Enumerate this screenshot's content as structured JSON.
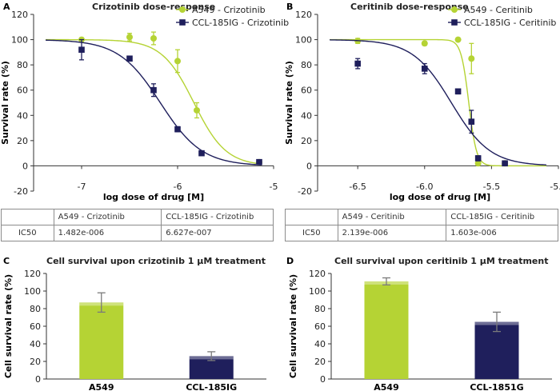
{
  "colors": {
    "green": "#b5d334",
    "navy": "#1f1f5c",
    "axis": "#333333"
  },
  "chart_data": [
    {
      "panel": "A",
      "type": "scatter",
      "title": "Crizotinib dose-response",
      "xlabel": "log dose of drug [M]",
      "ylabel": "Survival rate (%)",
      "xlim": [
        -7.5,
        -5
      ],
      "ylim": [
        -20,
        120
      ],
      "xticks": [
        "-7",
        "-6",
        "-5"
      ],
      "yticks": [
        "-20",
        "0",
        "20",
        "40",
        "60",
        "80",
        "100",
        "120"
      ],
      "series": [
        {
          "name": "A549 - Crizotinib",
          "marker": "circle",
          "ic50_log": -5.83,
          "hill": 2.6,
          "x": [
            -7.0,
            -6.5,
            -6.25,
            -6.0,
            -5.8,
            -5.15
          ],
          "y": [
            100,
            102,
            101,
            83,
            44,
            3
          ],
          "err": [
            1.5,
            3,
            5,
            9,
            6,
            1
          ]
        },
        {
          "name": "CCL-185IG - Crizotinib",
          "marker": "square",
          "ic50_log": -6.18,
          "hill": 2.0,
          "x": [
            -7.0,
            -6.5,
            -6.25,
            -6.0,
            -5.75,
            -5.15
          ],
          "y": [
            92,
            85,
            60,
            29,
            10,
            3
          ],
          "err": [
            8,
            1.5,
            5,
            2,
            1.5,
            1
          ]
        }
      ],
      "ic50_table": {
        "header": [
          "",
          "A549 - Crizotinib",
          "CCL-185IG - Crizotinib"
        ],
        "row": [
          "IC50",
          "1.482e-006",
          "6.627e-007"
        ]
      }
    },
    {
      "panel": "B",
      "type": "scatter",
      "title": "Ceritinib dose-response",
      "xlabel": "log dose of drug [M]",
      "ylabel": "Survival rate (%)",
      "xlim": [
        -6.8,
        -5.0
      ],
      "ylim": [
        -20,
        120
      ],
      "xticks": [
        "-6.5",
        "-6.0",
        "-5.5",
        "-5.0"
      ],
      "yticks": [
        "-20",
        "0",
        "20",
        "40",
        "60",
        "80",
        "100",
        "120"
      ],
      "series": [
        {
          "name": "A549 - Ceritinib",
          "marker": "circle",
          "ic50_log": -5.67,
          "hill": 15,
          "x": [
            -6.5,
            -6.0,
            -5.75,
            -5.65,
            -5.6,
            -5.4
          ],
          "y": [
            99,
            97,
            100,
            85,
            2,
            2
          ],
          "err": [
            2,
            1.5,
            1,
            12,
            1,
            1
          ]
        },
        {
          "name": "CCL-185IG - Ceritinib",
          "marker": "square",
          "ic50_log": -5.8,
          "hill": 3.0,
          "x": [
            -6.5,
            -6.0,
            -5.75,
            -5.65,
            -5.6,
            -5.4
          ],
          "y": [
            81,
            77,
            59,
            35,
            6,
            2
          ],
          "err": [
            4,
            4,
            2,
            9,
            2,
            1
          ]
        }
      ],
      "ic50_table": {
        "header": [
          "",
          "A549 - Ceritinib",
          "CCL-185IG - Ceritinib"
        ],
        "row": [
          "IC50",
          "2.139e-006",
          "1.603e-006"
        ]
      }
    },
    {
      "panel": "C",
      "type": "bar",
      "title": "Cell survival upon crizotinib 1 μM treatment",
      "xlabel": "",
      "ylabel": "Cell survival rate (%)",
      "categories": [
        "A549",
        "CCL-185IG"
      ],
      "values": [
        87,
        26
      ],
      "errors": [
        11,
        5
      ],
      "ylim": [
        0,
        120
      ],
      "yticks": [
        "0",
        "20",
        "40",
        "60",
        "80",
        "100",
        "120"
      ]
    },
    {
      "panel": "D",
      "type": "bar",
      "title": "Cell survival upon ceritinib 1 μM treatment",
      "xlabel": "",
      "ylabel": "Cell survival rate (%)",
      "categories": [
        "A549",
        "CCL-1851G"
      ],
      "values": [
        111,
        65
      ],
      "errors": [
        4,
        11
      ],
      "ylim": [
        0,
        120
      ],
      "yticks": [
        "0",
        "20",
        "40",
        "60",
        "80",
        "100",
        "120"
      ]
    }
  ]
}
